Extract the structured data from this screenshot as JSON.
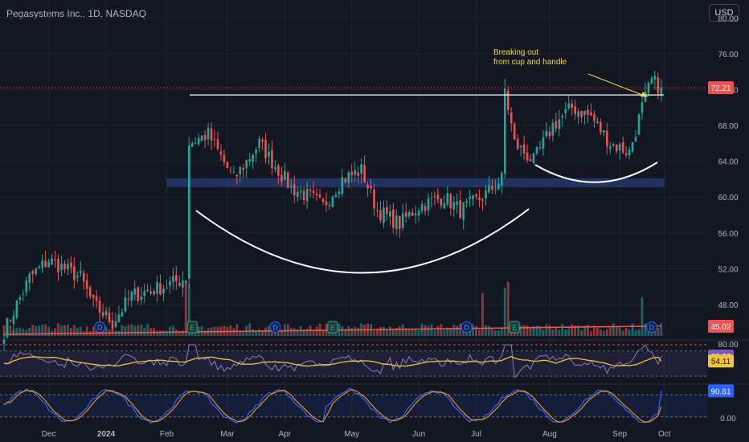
{
  "header": {
    "title": "Pegasystems Inc., 1D, NASDAQ",
    "currency_button": "USD"
  },
  "colors": {
    "up": "#26a69a",
    "down": "#ef5350",
    "bg": "#131722",
    "grid": "#1e222d",
    "sma": "#f0c43a",
    "rsi": "#8e7cc3",
    "stoch_k": "#2962ff",
    "stoch_d": "#ff9800",
    "annotation": "#f0d64a",
    "zone": "#2a3f7a"
  },
  "chart_data": [
    {
      "type": "candlestick",
      "title": "Pegasystems Inc., 1D, NASDAQ",
      "x_ticks": [
        "Dec",
        "2024",
        "Feb",
        "Mar",
        "Apr",
        "May",
        "Jun",
        "Jul",
        "Aug",
        "Sep",
        "Oct"
      ],
      "y_ticks": [
        48,
        52,
        56,
        60,
        64,
        68,
        72,
        76,
        80
      ],
      "y_tick_labels": [
        "48.00",
        "52.00",
        "56.00",
        "60.00",
        "64.00",
        "68.00",
        "72.00",
        "76.00",
        "80.00"
      ],
      "ylim": [
        44.5,
        82
      ],
      "last_price": 72.21,
      "last_price_label": "72.21",
      "volume_ma_label": "45.02",
      "annotation": {
        "line1": "Breaking out",
        "line2": "from cup and handle"
      },
      "resistance_level": 71.4,
      "support_zone": [
        61.1,
        62.1
      ],
      "monthly_closes": [
        {
          "month": "Nov",
          "close": 50.0
        },
        {
          "month": "Dec",
          "close": 52.3
        },
        {
          "month": "Jan",
          "close": 48.5
        },
        {
          "month": "Feb",
          "close": 65.0
        },
        {
          "month": "Mar",
          "close": 64.8
        },
        {
          "month": "Apr",
          "close": 60.8
        },
        {
          "month": "May",
          "close": 60.2
        },
        {
          "month": "Jun",
          "close": 59.5
        },
        {
          "month": "Jul",
          "close": 67.0
        },
        {
          "month": "Aug",
          "close": 70.0
        },
        {
          "month": "Sep",
          "close": 73.0
        }
      ],
      "earnings_markers": [
        "E",
        "E",
        "E"
      ],
      "dividend_markers": [
        "D",
        "D",
        "D",
        "D"
      ]
    },
    {
      "type": "line",
      "name": "RSI",
      "y_tick_labels": [
        "80.00"
      ],
      "ylim": [
        20,
        85
      ],
      "last_rsi": 62.09,
      "last_rsi_label": "62.09",
      "last_ma": 54.11,
      "last_ma_label": "54.11",
      "bands": [
        70,
        30
      ]
    },
    {
      "type": "line",
      "name": "Stochastic",
      "y_tick_labels": [
        "0.00"
      ],
      "ylim": [
        0,
        100
      ],
      "last_k": 90.61,
      "last_k_label": "90.61",
      "bands": [
        80,
        20
      ]
    }
  ]
}
